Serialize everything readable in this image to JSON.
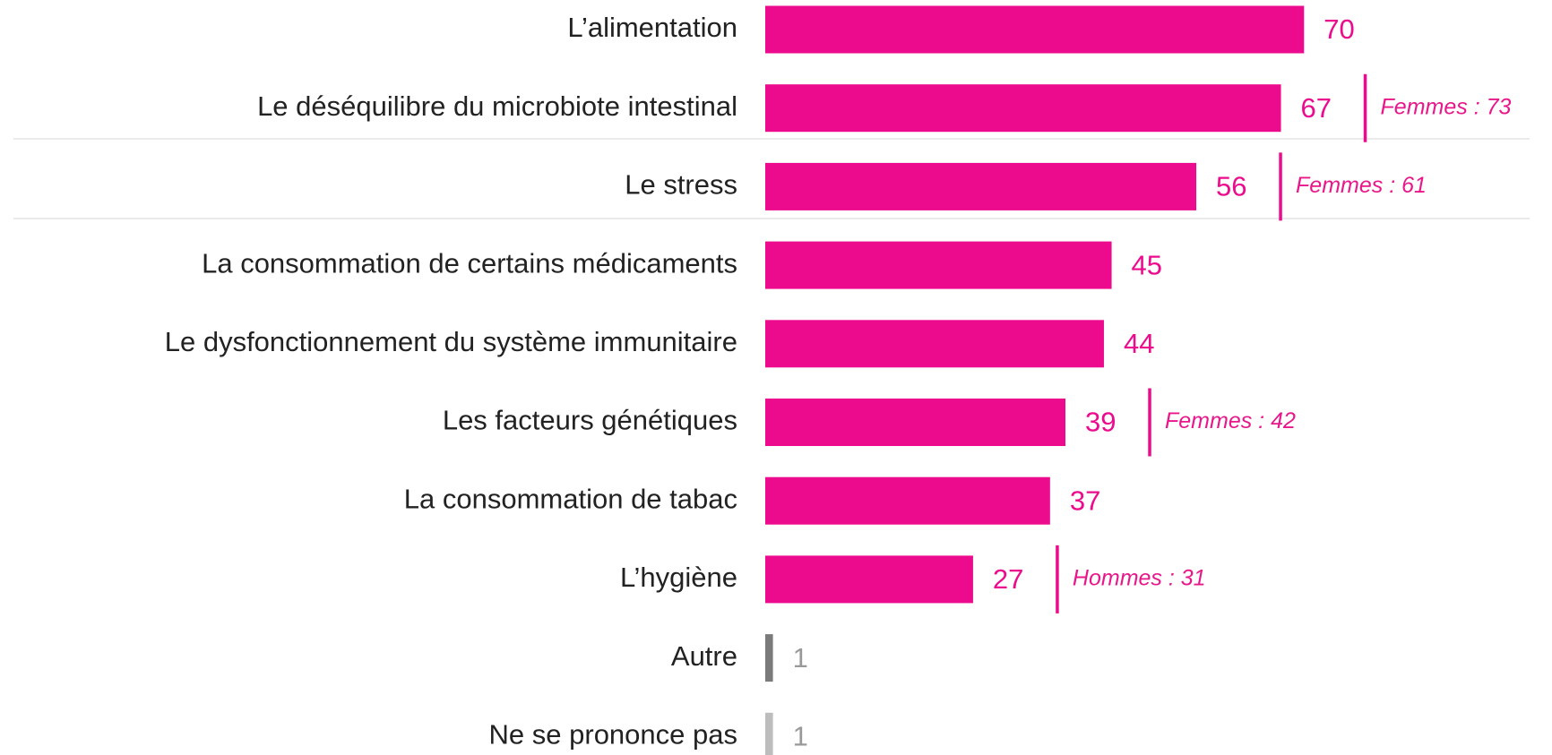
{
  "chart_data": {
    "type": "bar",
    "orientation": "horizontal",
    "categories": [
      "L’alimentation",
      "Le déséquilibre du microbiote intestinal",
      "Le stress",
      "La consommation de certains médicaments",
      "Le dysfonctionnement du système immunitaire",
      "Les facteurs génétiques",
      "La consommation de tabac",
      "L’hygiène",
      "Autre",
      "Ne se prononce pas"
    ],
    "values": [
      70,
      67,
      56,
      45,
      44,
      39,
      37,
      27,
      1,
      1
    ],
    "colors": [
      "#ec0b8c",
      "#ec0b8c",
      "#ec0b8c",
      "#ec0b8c",
      "#ec0b8c",
      "#ec0b8c",
      "#ec0b8c",
      "#ec0b8c",
      "#7a7a7a",
      "#bdbdbd"
    ],
    "label_colors": [
      "#ec0b8c",
      "#ec0b8c",
      "#ec0b8c",
      "#ec0b8c",
      "#ec0b8c",
      "#ec0b8c",
      "#ec0b8c",
      "#ec0b8c",
      "#999999",
      "#999999"
    ],
    "annotations": [
      null,
      "Femmes : 73",
      "Femmes : 61",
      null,
      null,
      "Femmes : 42",
      null,
      "Hommes  : 31",
      null,
      null
    ]
  }
}
